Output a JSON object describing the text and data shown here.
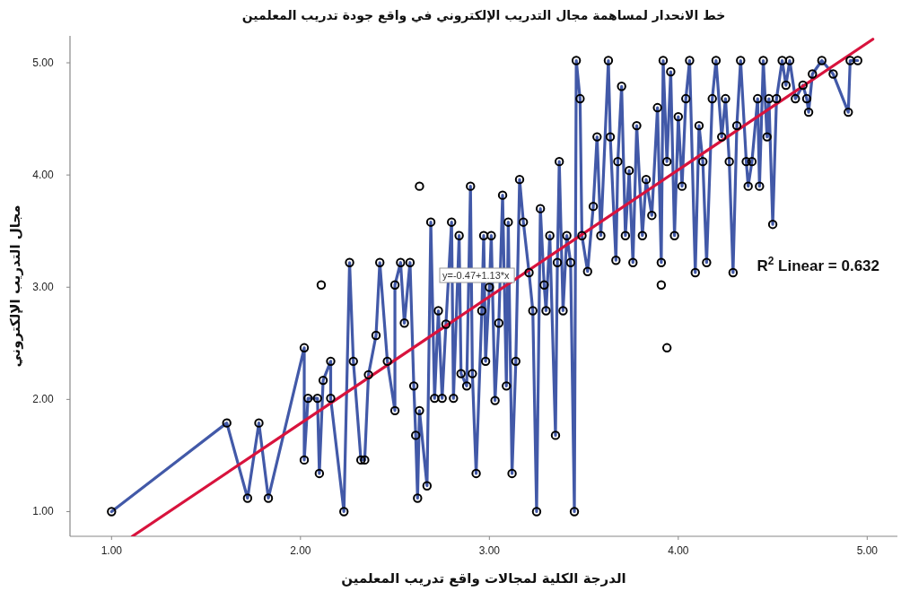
{
  "chart_data": {
    "type": "scatter",
    "title": "خط الانحدار لمساهمة مجال التدريب الإلكتروني في واقع جودة تدريب المعلمين",
    "xlabel": "الدرجة الكلية لمجالات واقع تدريب المعلمين",
    "ylabel": "مجال التدريب الإلكتروني",
    "xlim": [
      0.78,
      5.16
    ],
    "ylim": [
      0.78,
      5.24
    ],
    "xticks": [
      {
        "value": 1,
        "label": "1.00"
      },
      {
        "value": 2,
        "label": "2.00"
      },
      {
        "value": 3,
        "label": "3.00"
      },
      {
        "value": 4,
        "label": "4.00"
      },
      {
        "value": 5,
        "label": "5.00"
      }
    ],
    "yticks": [
      {
        "value": 1,
        "label": "1.00"
      },
      {
        "value": 2,
        "label": "2.00"
      },
      {
        "value": 3,
        "label": "3.00"
      },
      {
        "value": 4,
        "label": "4.00"
      },
      {
        "value": 5,
        "label": "5.00"
      }
    ],
    "grid": false,
    "series": [
      {
        "type": "line",
        "color": "#4259a8",
        "line_style": "solid",
        "marker": "none",
        "x": [
          1.0,
          1.61,
          1.72,
          1.78,
          1.83,
          2.02,
          2.02,
          2.04,
          2.09,
          2.1,
          2.12,
          2.16,
          2.16,
          2.23,
          2.26,
          2.28,
          2.32,
          2.34,
          2.36,
          2.4,
          2.42,
          2.46,
          2.5,
          2.5,
          2.53,
          2.55,
          2.58,
          2.6,
          2.61,
          2.62,
          2.63,
          2.67,
          2.69,
          2.71,
          2.73,
          2.75,
          2.77,
          2.8,
          2.81,
          2.84,
          2.85,
          2.88,
          2.9,
          2.91,
          2.93,
          2.96,
          2.97,
          2.98,
          3.0,
          3.01,
          3.03,
          3.05,
          3.07,
          3.09,
          3.1,
          3.12,
          3.14,
          3.16,
          3.18,
          3.21,
          3.23,
          3.25,
          3.27,
          3.29,
          3.3,
          3.32,
          3.35,
          3.36,
          3.37,
          3.39,
          3.41,
          3.43,
          3.45,
          3.46,
          3.48,
          3.49,
          3.52,
          3.55,
          3.57,
          3.59,
          3.63,
          3.64,
          3.67,
          3.68,
          3.7,
          3.72,
          3.74,
          3.76,
          3.78,
          3.81,
          3.83,
          3.86,
          3.89,
          3.91,
          3.92,
          3.94,
          3.96,
          3.98,
          4.0,
          4.02,
          4.04,
          4.06,
          4.09,
          4.11,
          4.13,
          4.15,
          4.18,
          4.2,
          4.23,
          4.25,
          4.27,
          4.29,
          4.31,
          4.33,
          4.36,
          4.37,
          4.39,
          4.42,
          4.43,
          4.45,
          4.47,
          4.48,
          4.5,
          4.52,
          4.55,
          4.57,
          4.59,
          4.62,
          4.66,
          4.68,
          4.69,
          4.71,
          4.76,
          4.82,
          4.9,
          4.91,
          4.95
        ],
        "values": [
          1.0,
          1.79,
          1.12,
          1.79,
          1.12,
          2.46,
          1.46,
          2.01,
          2.01,
          1.34,
          2.17,
          2.34,
          2.01,
          1.0,
          3.22,
          2.34,
          1.46,
          1.46,
          2.22,
          2.57,
          3.22,
          2.34,
          1.9,
          3.02,
          3.22,
          2.68,
          3.22,
          2.12,
          1.68,
          1.12,
          1.9,
          1.23,
          3.58,
          2.01,
          2.79,
          2.01,
          2.67,
          3.58,
          2.01,
          3.46,
          2.23,
          2.12,
          3.9,
          2.23,
          1.34,
          2.79,
          3.46,
          2.34,
          3.0,
          3.46,
          1.99,
          2.68,
          3.82,
          2.12,
          3.58,
          1.34,
          2.34,
          3.96,
          3.58,
          3.13,
          2.79,
          1.0,
          3.7,
          3.02,
          2.79,
          3.46,
          1.68,
          3.22,
          4.12,
          2.79,
          3.46,
          3.22,
          1.0,
          5.02,
          4.68,
          3.46,
          3.14,
          3.72,
          4.34,
          3.46,
          5.02,
          4.34,
          3.24,
          4.12,
          4.79,
          3.46,
          4.04,
          3.22,
          4.44,
          3.46,
          3.96,
          3.64,
          4.6,
          3.22,
          5.02,
          4.12,
          4.92,
          3.46,
          4.52,
          3.9,
          4.68,
          5.02,
          3.13,
          4.44,
          4.12,
          3.22,
          4.68,
          5.02,
          4.34,
          4.68,
          4.12,
          3.13,
          4.44,
          5.02,
          4.12,
          3.9,
          4.12,
          4.68,
          3.9,
          5.02,
          4.34,
          4.68,
          3.56,
          4.68,
          5.02,
          4.8,
          5.02,
          4.68,
          4.8,
          4.68,
          4.56,
          4.9,
          5.02,
          4.9,
          4.56,
          5.02,
          5.02
        ]
      },
      {
        "type": "scatter",
        "color": "#000000",
        "marker": "circle",
        "x": [
          1.0,
          1.61,
          1.72,
          1.78,
          1.83,
          2.02,
          2.02,
          2.04,
          2.09,
          2.1,
          2.11,
          2.12,
          2.16,
          2.16,
          2.23,
          2.26,
          2.28,
          2.32,
          2.34,
          2.36,
          2.4,
          2.42,
          2.46,
          2.5,
          2.5,
          2.53,
          2.55,
          2.58,
          2.6,
          2.61,
          2.62,
          2.63,
          2.63,
          2.67,
          2.69,
          2.71,
          2.73,
          2.75,
          2.77,
          2.8,
          2.81,
          2.84,
          2.85,
          2.88,
          2.9,
          2.91,
          2.93,
          2.96,
          2.97,
          2.98,
          3.0,
          3.01,
          3.03,
          3.05,
          3.07,
          3.09,
          3.1,
          3.12,
          3.14,
          3.16,
          3.18,
          3.21,
          3.23,
          3.25,
          3.27,
          3.29,
          3.3,
          3.32,
          3.35,
          3.36,
          3.37,
          3.39,
          3.41,
          3.43,
          3.45,
          3.46,
          3.48,
          3.49,
          3.52,
          3.55,
          3.57,
          3.59,
          3.63,
          3.64,
          3.67,
          3.68,
          3.7,
          3.72,
          3.74,
          3.76,
          3.78,
          3.81,
          3.83,
          3.86,
          3.89,
          3.91,
          3.91,
          3.92,
          3.94,
          3.94,
          3.96,
          3.98,
          4.0,
          4.02,
          4.04,
          4.06,
          4.09,
          4.11,
          4.13,
          4.15,
          4.18,
          4.2,
          4.23,
          4.25,
          4.27,
          4.29,
          4.31,
          4.33,
          4.36,
          4.37,
          4.39,
          4.42,
          4.43,
          4.45,
          4.47,
          4.48,
          4.5,
          4.52,
          4.55,
          4.57,
          4.59,
          4.62,
          4.66,
          4.68,
          4.69,
          4.71,
          4.76,
          4.82,
          4.9,
          4.91,
          4.95
        ],
        "values": [
          1.0,
          1.79,
          1.12,
          1.79,
          1.12,
          2.46,
          1.46,
          2.01,
          2.01,
          1.34,
          3.02,
          2.17,
          2.34,
          2.01,
          1.0,
          3.22,
          2.34,
          1.46,
          1.46,
          2.22,
          2.57,
          3.22,
          2.34,
          1.9,
          3.02,
          3.22,
          2.68,
          3.22,
          2.12,
          1.68,
          1.12,
          1.9,
          3.9,
          1.23,
          3.58,
          2.01,
          2.79,
          2.01,
          2.67,
          3.58,
          2.01,
          3.46,
          2.23,
          2.12,
          3.9,
          2.23,
          1.34,
          2.79,
          3.46,
          2.34,
          3.0,
          3.46,
          1.99,
          2.68,
          3.82,
          2.12,
          3.58,
          1.34,
          2.34,
          3.96,
          3.58,
          3.13,
          2.79,
          1.0,
          3.7,
          3.02,
          2.79,
          3.46,
          1.68,
          3.22,
          4.12,
          2.79,
          3.46,
          3.22,
          1.0,
          5.02,
          4.68,
          3.46,
          3.14,
          3.72,
          4.34,
          3.46,
          5.02,
          4.34,
          3.24,
          4.12,
          4.79,
          3.46,
          4.04,
          3.22,
          4.44,
          3.46,
          3.96,
          3.64,
          4.6,
          3.22,
          3.02,
          5.02,
          4.12,
          2.46,
          4.92,
          3.46,
          4.52,
          3.9,
          4.68,
          5.02,
          3.13,
          4.44,
          4.12,
          3.22,
          4.68,
          5.02,
          4.34,
          4.68,
          4.12,
          3.13,
          4.44,
          5.02,
          4.12,
          3.9,
          4.12,
          4.68,
          3.9,
          5.02,
          4.34,
          4.68,
          3.56,
          4.68,
          5.02,
          4.8,
          5.02,
          4.68,
          4.8,
          4.68,
          4.56,
          4.9,
          5.02,
          4.9,
          4.56,
          5.02,
          5.02
        ]
      },
      {
        "type": "line",
        "color": "#d8133d",
        "line_style": "solid",
        "marker": "none",
        "x": [
          1.11,
          5.03
        ],
        "values": [
          0.78,
          5.21
        ]
      }
    ],
    "annotations": [
      "y=-0.47+1.13*x",
      "R$^{2}$ Linear = 0.632"
    ]
  }
}
